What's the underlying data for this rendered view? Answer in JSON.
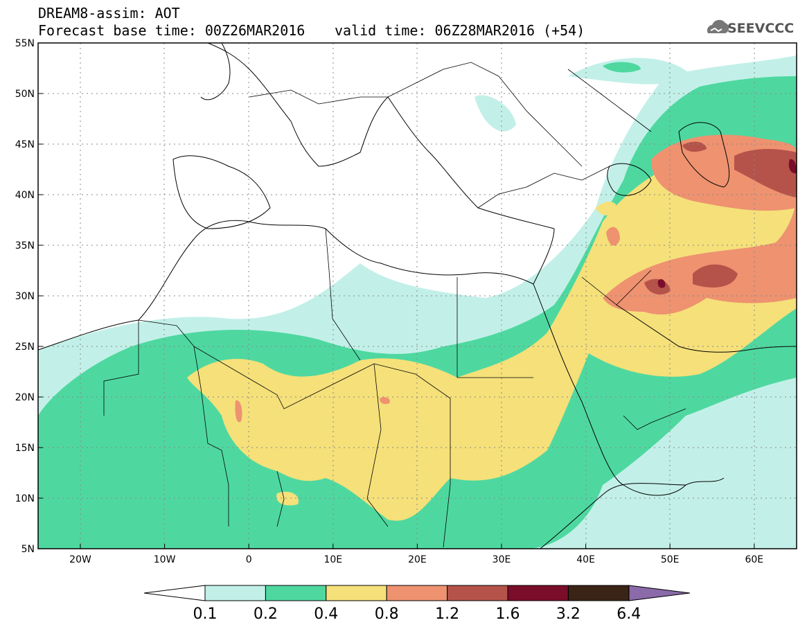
{
  "header": {
    "title": "DREAM8-assim: AOT",
    "base_time": "Forecast base time: 00Z26MAR2016",
    "valid_time": "valid time: 06Z28MAR2016 (+54)"
  },
  "logo": {
    "text": "SEEVCCC",
    "icon": "cloud-icon"
  },
  "map": {
    "lat_ticks": [
      "55N",
      "50N",
      "45N",
      "40N",
      "35N",
      "30N",
      "25N",
      "20N",
      "15N",
      "10N",
      "5N"
    ],
    "lon_ticks": [
      "20W",
      "10W",
      "0",
      "10E",
      "20E",
      "30E",
      "40E",
      "50E",
      "60E"
    ]
  },
  "colorbar": {
    "labels": [
      "0.1",
      "0.2",
      "0.4",
      "0.8",
      "1.2",
      "1.6",
      "3.2",
      "6.4"
    ],
    "colors": [
      "#ffffff",
      "#c2f0e8",
      "#4ed8a0",
      "#f5e07a",
      "#ee9270",
      "#b5534a",
      "#7a0d2a",
      "#3a2416",
      "#8a6aa8"
    ]
  }
}
